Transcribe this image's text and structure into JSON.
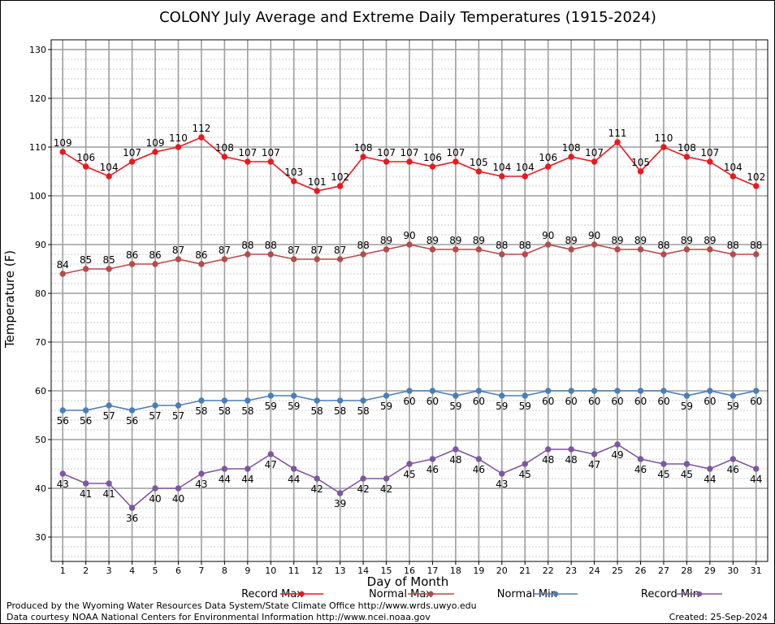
{
  "chart_data": {
    "type": "line",
    "title": "COLONY July Average and Extreme Daily Temperatures (1915-2024)",
    "xlabel": "Day of Month",
    "ylabel": "Temperature (F)",
    "xlim": [
      0.5,
      31.5
    ],
    "ylim": [
      25,
      132
    ],
    "y_ticks": [
      30,
      40,
      50,
      60,
      70,
      80,
      90,
      100,
      110,
      120,
      130
    ],
    "x": [
      1,
      2,
      3,
      4,
      5,
      6,
      7,
      8,
      9,
      10,
      11,
      12,
      13,
      14,
      15,
      16,
      17,
      18,
      19,
      20,
      21,
      22,
      23,
      24,
      25,
      26,
      27,
      28,
      29,
      30,
      31
    ],
    "grid": true,
    "legend_position": "bottom",
    "series": [
      {
        "name": "Record Max",
        "color": "#e8191f",
        "label_pos": "above",
        "values": [
          109,
          106,
          104,
          107,
          109,
          110,
          112,
          108,
          107,
          107,
          103,
          101,
          102,
          108,
          107,
          107,
          106,
          107,
          105,
          104,
          104,
          106,
          108,
          107,
          111,
          105,
          110,
          108,
          107,
          104,
          102
        ]
      },
      {
        "name": "Normal Max",
        "color": "#b84a4a",
        "label_pos": "above",
        "values": [
          84,
          85,
          85,
          86,
          86,
          87,
          86,
          87,
          88,
          88,
          87,
          87,
          87,
          88,
          89,
          90,
          89,
          89,
          89,
          88,
          88,
          90,
          89,
          90,
          89,
          89,
          88,
          89,
          89,
          88,
          88
        ]
      },
      {
        "name": "Normal Min",
        "color": "#4a7eb8",
        "label_pos": "below",
        "values": [
          56,
          56,
          57,
          56,
          57,
          57,
          58,
          58,
          58,
          59,
          59,
          58,
          58,
          58,
          59,
          60,
          60,
          59,
          60,
          59,
          59,
          60,
          60,
          60,
          60,
          60,
          60,
          59,
          60,
          59,
          60
        ]
      },
      {
        "name": "Record Min",
        "color": "#7e56a0",
        "label_pos": "below",
        "values": [
          43,
          41,
          41,
          36,
          40,
          40,
          43,
          44,
          44,
          47,
          44,
          42,
          39,
          42,
          42,
          45,
          46,
          48,
          46,
          43,
          45,
          48,
          48,
          47,
          49,
          46,
          45,
          45,
          44,
          46,
          44
        ]
      }
    ]
  },
  "footer": {
    "produced_by": "Produced by the Wyoming Water Resources Data System/State Climate Office http://www.wrds.uwyo.edu",
    "courtesy": "Data courtesy NOAA National Centers for Environmental Information http://www.ncei.noaa.gov",
    "created": "Created:  25-Sep-2024"
  }
}
